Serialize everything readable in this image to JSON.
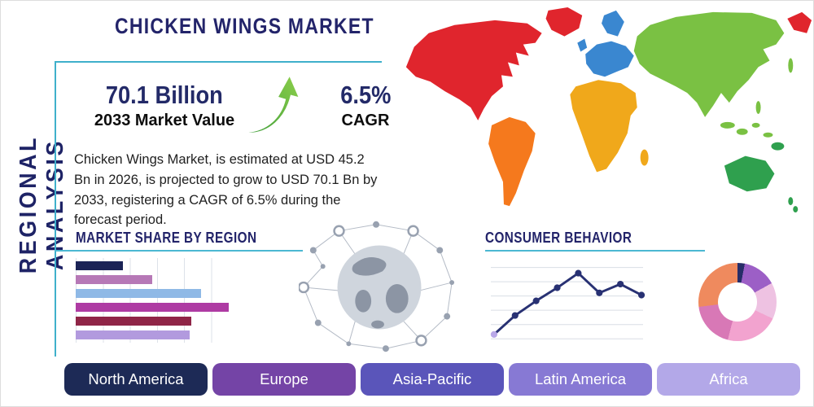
{
  "header": {
    "title": "CHICKEN WINGS MARKET",
    "side_label": "REGIONAL ANALYSIS"
  },
  "summary": {
    "value": "70.1 Billion",
    "value_label": "2033 Market Value",
    "cagr": "6.5%",
    "cagr_label": "CAGR",
    "description": "Chicken Wings Market, is estimated at USD 45.2 Bn in 2026, is projected to grow to USD 70.1 Bn by 2033, registering a CAGR of 6.5% during the forecast period.",
    "growth_arrow_icon": "growth-arrow-up"
  },
  "sections": {
    "market_share_title": "MARKET SHARE BY REGION",
    "consumer_behavior_title": "CONSUMER BEHAVIOR"
  },
  "region_buttons": [
    {
      "label": "North America",
      "color": "#1d2a56"
    },
    {
      "label": "Europe",
      "color": "#7444a6"
    },
    {
      "label": "Asia-Pacific",
      "color": "#5a55ba"
    },
    {
      "label": "Latin America",
      "color": "#8779d4"
    },
    {
      "label": "Africa",
      "color": "#b3a8e8"
    }
  ],
  "map_colors": {
    "north_america": "#e0252d",
    "greenland": "#e0252d",
    "south_america": "#f5791d",
    "europe": "#3a87d0",
    "africa": "#f0a81b",
    "asia": "#7ac143",
    "australia": "#2fa04e"
  },
  "chart_data": [
    {
      "type": "bar",
      "title": "MARKET SHARE BY REGION",
      "orientation": "horizontal",
      "values": [
        29,
        47,
        77,
        94,
        71,
        70
      ],
      "colors": [
        "#1b2356",
        "#b678b6",
        "#8fb9e6",
        "#ae3ba3",
        "#8f2547",
        "#b29ade"
      ],
      "xlim": [
        0,
        100
      ],
      "grid": "vertical"
    },
    {
      "type": "line",
      "title": "CONSUMER BEHAVIOR",
      "x": [
        1,
        2,
        3,
        4,
        5,
        6,
        7,
        8
      ],
      "values": [
        6,
        32,
        52,
        70,
        90,
        63,
        75,
        60
      ],
      "ylim": [
        0,
        100
      ],
      "line_color": "#283173",
      "marker_color": "#283173",
      "first_marker_color": "#b9a8e8",
      "grid": "horizontal"
    },
    {
      "type": "pie",
      "donut": true,
      "values": [
        3,
        14,
        15,
        22,
        19,
        27
      ],
      "colors": [
        "#272d68",
        "#9c5fc6",
        "#eec2e2",
        "#f2a3cf",
        "#d878b6",
        "#ef8a5e"
      ]
    }
  ]
}
